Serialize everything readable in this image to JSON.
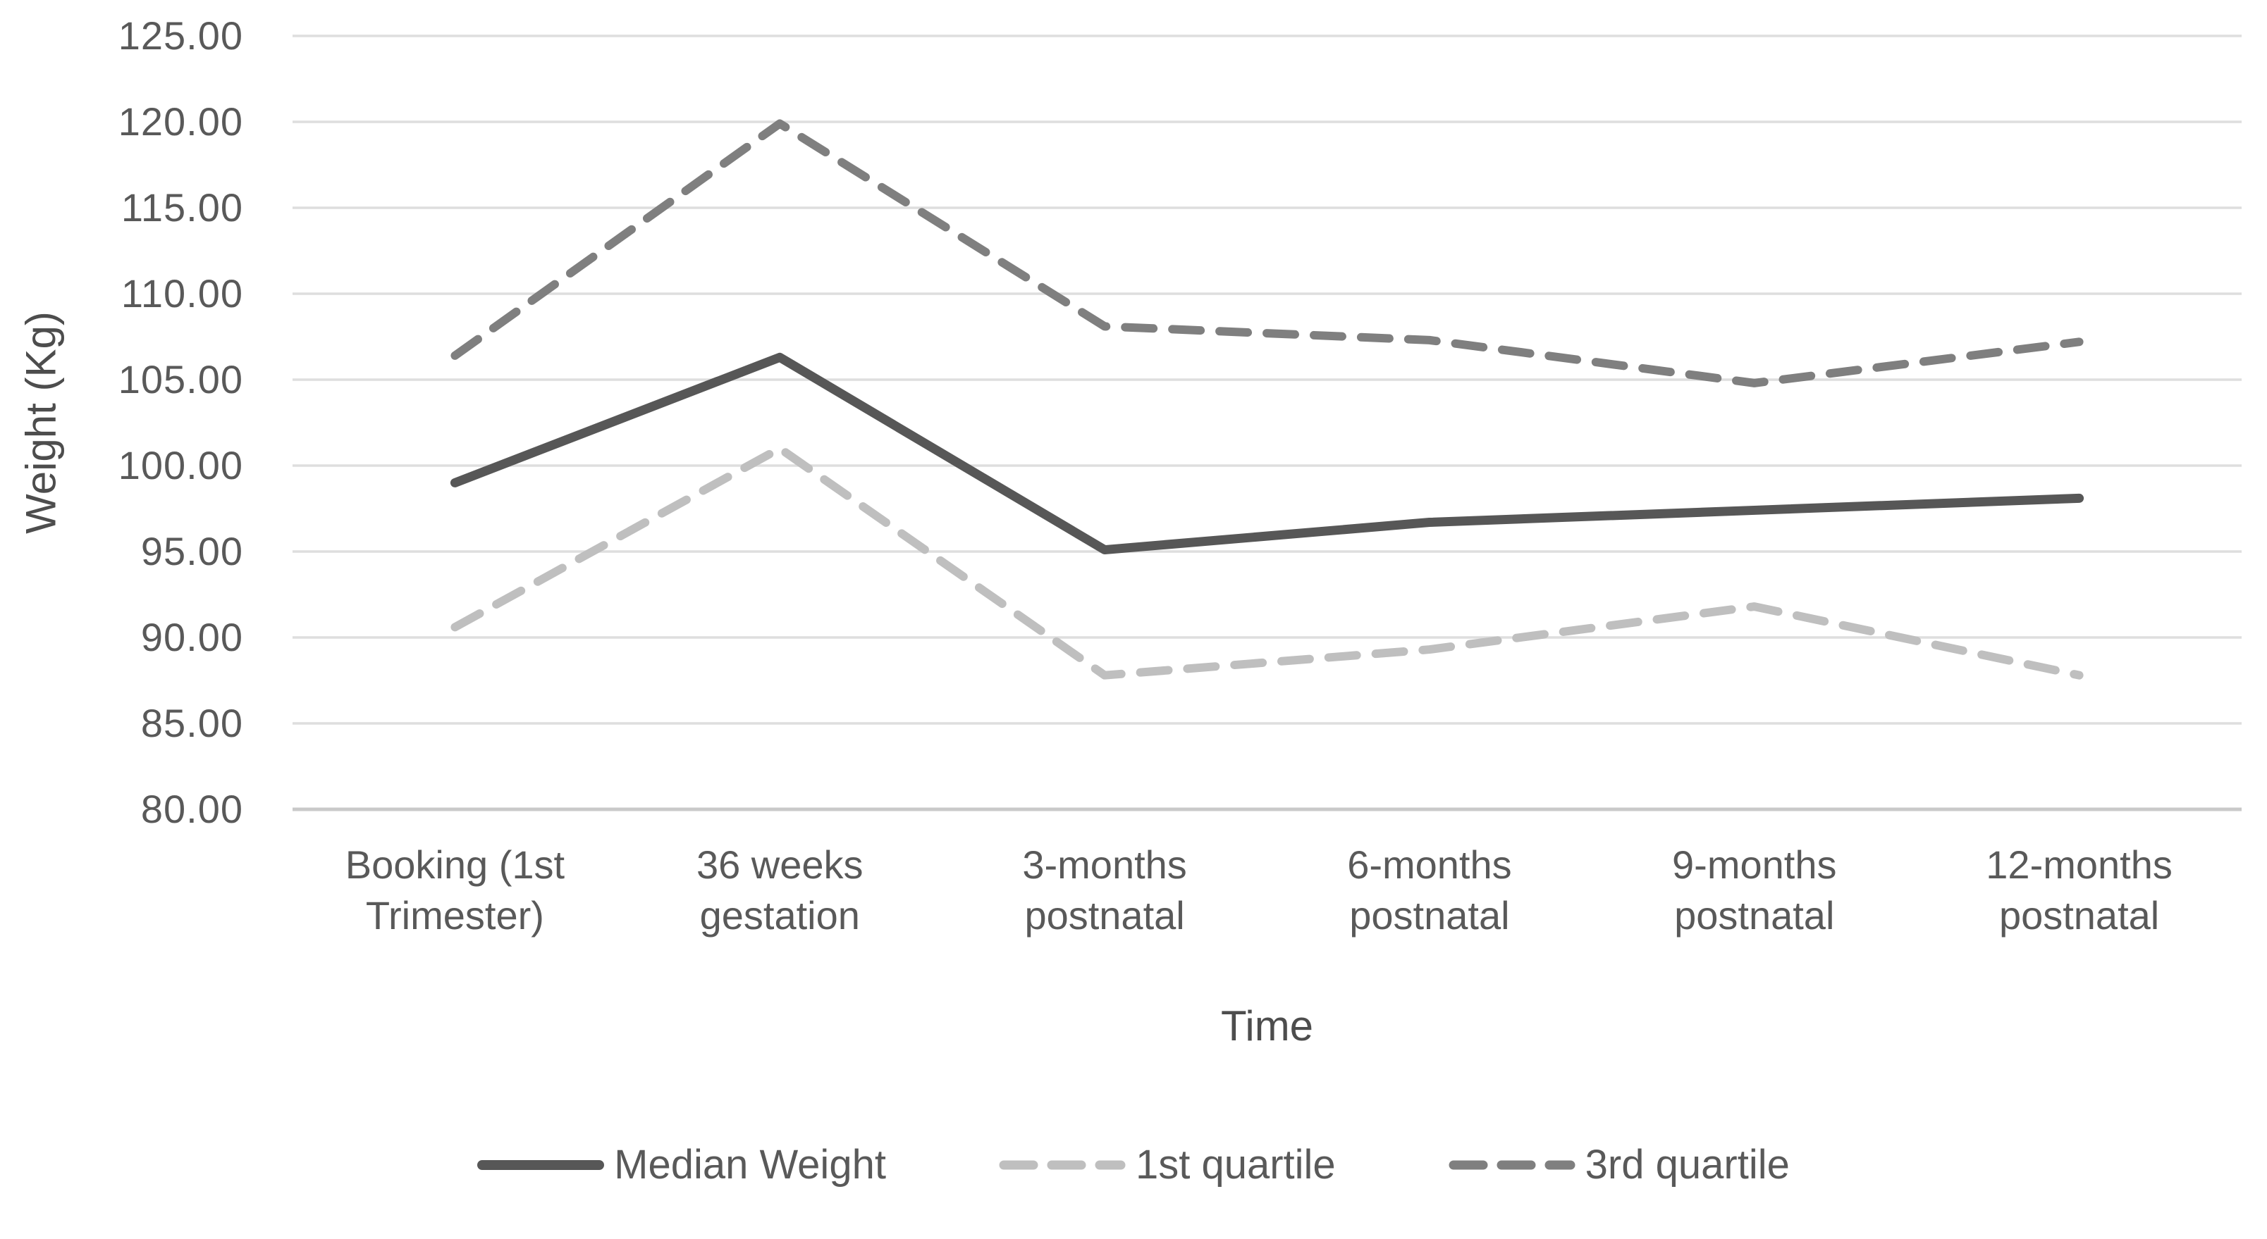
{
  "chart_data": {
    "type": "line",
    "title": "",
    "xlabel": "Time",
    "ylabel": "Weight (Kg)",
    "ylim": [
      80,
      125
    ],
    "ytick_step": 5,
    "ytick_decimals": 2,
    "grid": true,
    "legend_position": "bottom",
    "categories": [
      "Booking (1st Trimester)",
      "36 weeks gestation",
      "3-months postnatal",
      "6-months postnatal",
      "9-months postnatal",
      "12-months postnatal"
    ],
    "category_labels": [
      "Booking (1st\nTrimester)",
      "36 weeks\ngestation",
      "3-months\npostnatal",
      "6-months\npostnatal",
      "9-months\npostnatal",
      "12-months\npostnatal"
    ],
    "series": [
      {
        "name": "Median Weight",
        "style": "solid",
        "color": "#575757",
        "values": [
          99.0,
          106.3,
          95.1,
          96.7,
          97.4,
          98.1
        ]
      },
      {
        "name": "1st quartile",
        "style": "dashed",
        "color": "#bfbfbf",
        "values": [
          90.6,
          101.0,
          87.8,
          89.3,
          91.8,
          87.8
        ]
      },
      {
        "name": "3rd quartile",
        "style": "dashed",
        "color": "#7f7f7f",
        "values": [
          106.4,
          119.9,
          108.1,
          107.3,
          104.8,
          107.2
        ]
      }
    ]
  },
  "colors": {
    "gridline": "#dedede",
    "axis_line": "#c9c9c9",
    "tick_text": "#595959",
    "axis_title_text": "#4d4d4d",
    "background": "#ffffff"
  }
}
